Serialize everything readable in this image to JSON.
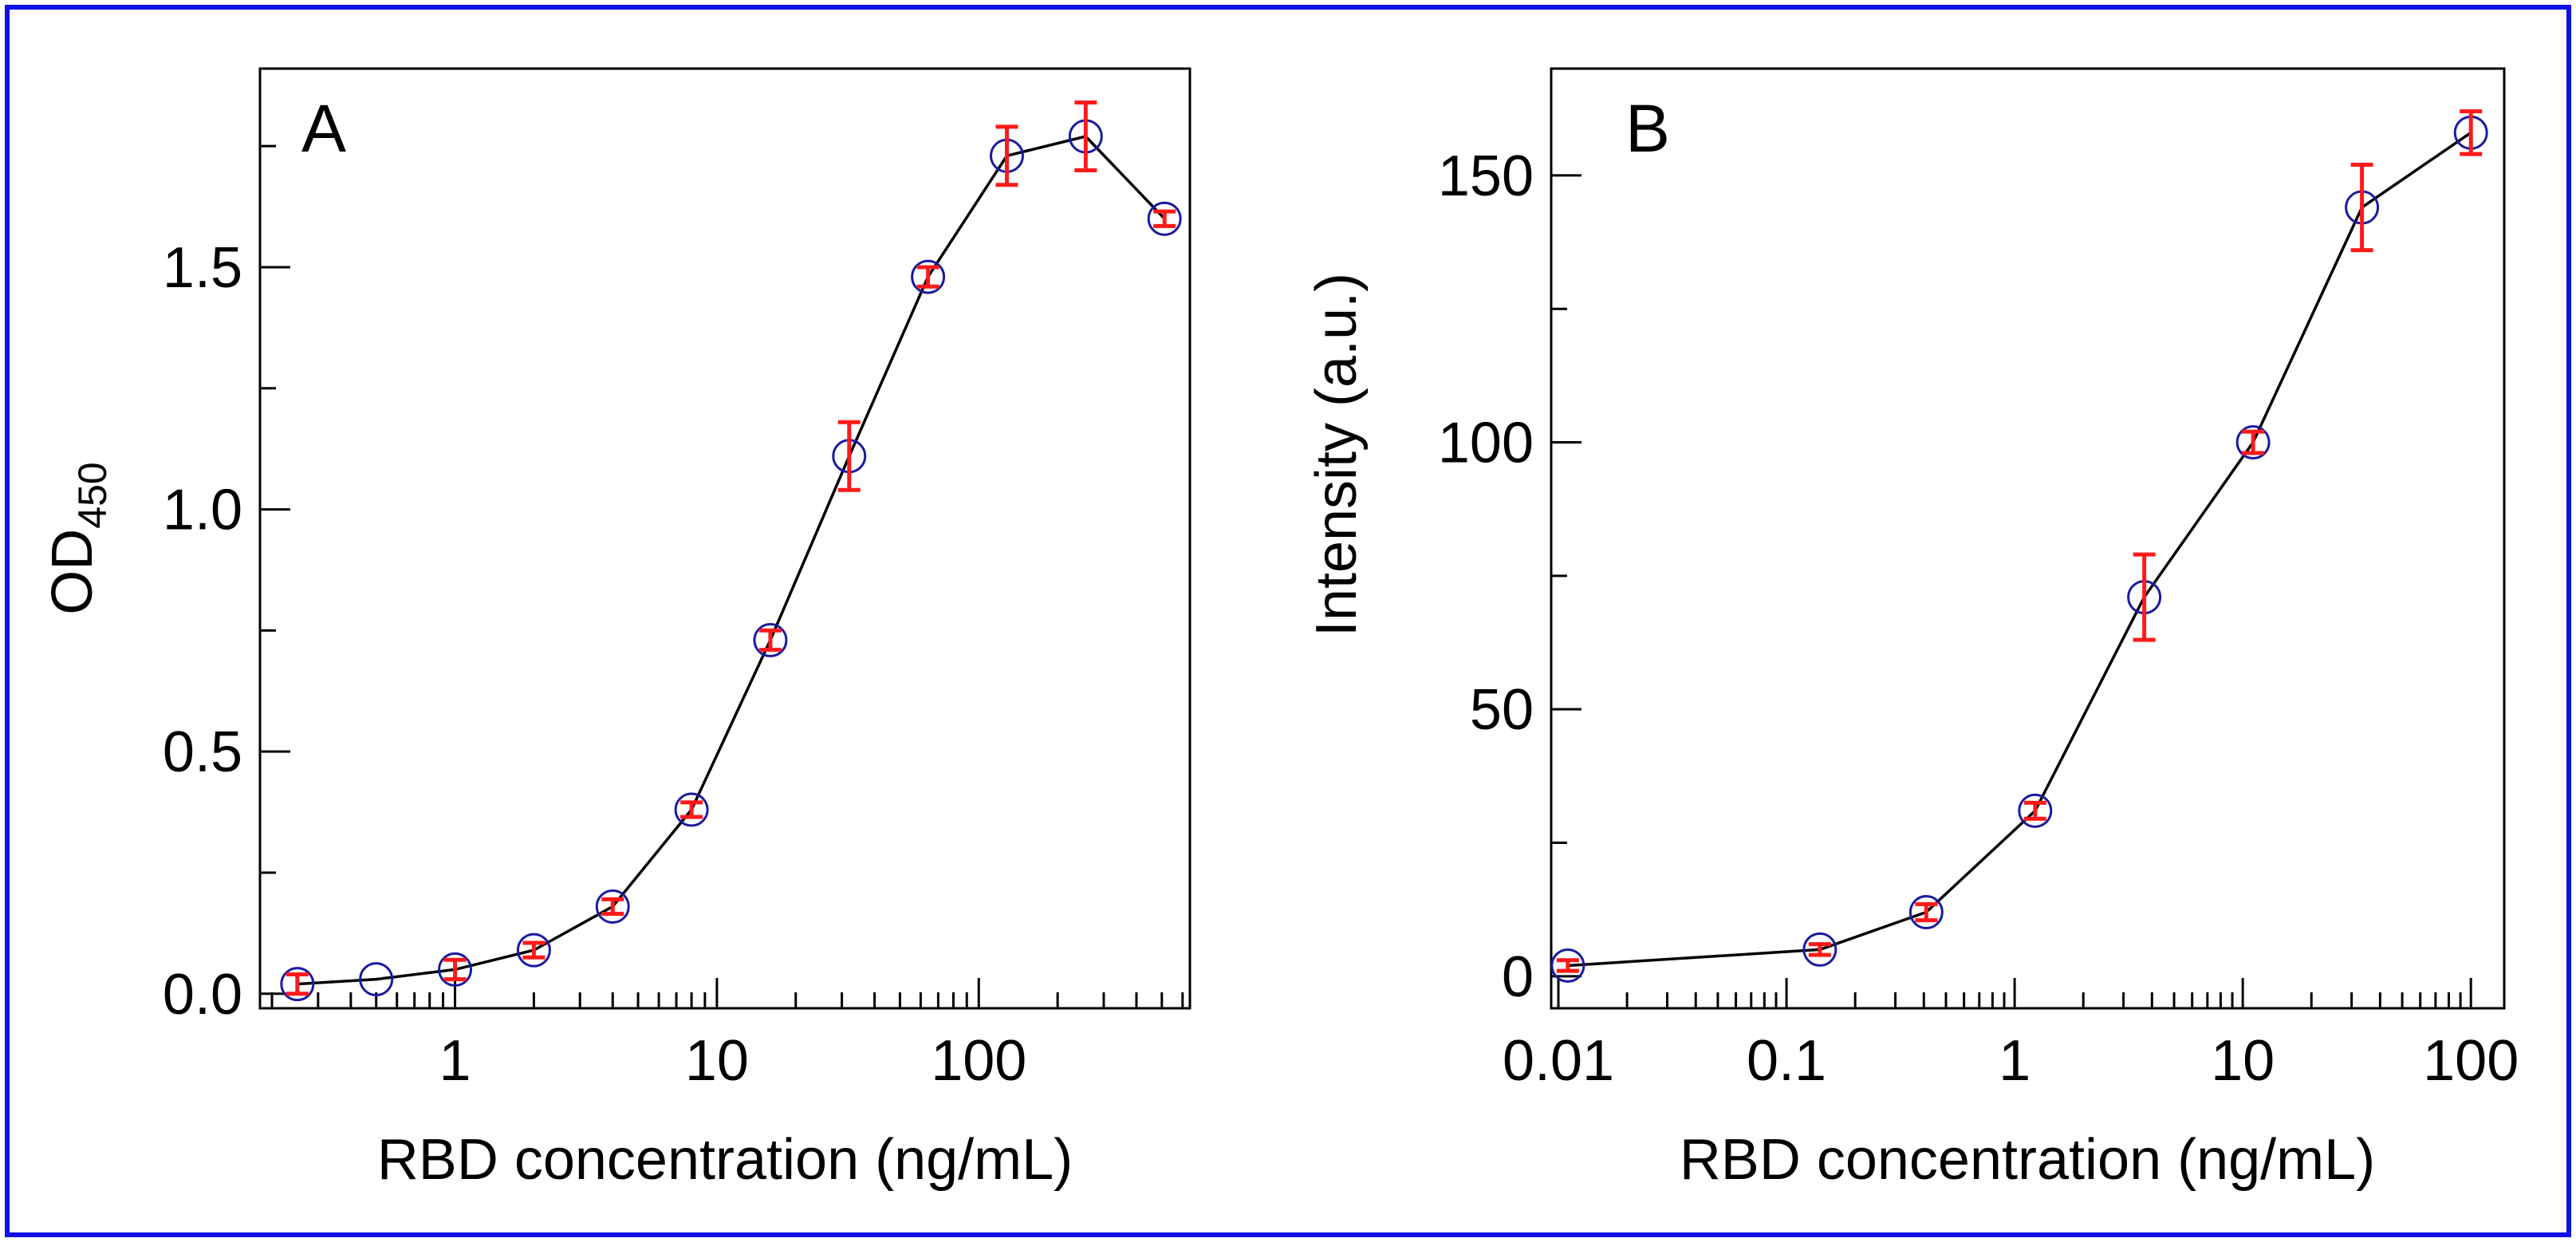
{
  "chart_data": [
    {
      "panel": "A",
      "type": "line",
      "xscale": "log",
      "xlim": [
        0.18,
        640
      ],
      "ylim": [
        -0.03,
        1.91
      ],
      "xticks": [
        {
          "v": 1,
          "label": "1"
        },
        {
          "v": 10,
          "label": "10"
        },
        {
          "v": 100,
          "label": "100"
        }
      ],
      "yticks": [
        {
          "v": 0,
          "label": "0.0"
        },
        {
          "v": 0.5,
          "label": "0.5"
        },
        {
          "v": 1.0,
          "label": "1.0"
        },
        {
          "v": 1.5,
          "label": "1.5"
        }
      ],
      "xlabel": "RBD concentration (ng/mL)",
      "ylabel_main": "OD",
      "ylabel_sub": "450",
      "x": [
        0.25,
        0.5,
        1,
        2,
        4,
        8,
        16,
        32,
        64,
        128,
        256,
        512
      ],
      "y": [
        0.02,
        0.03,
        0.05,
        0.09,
        0.18,
        0.38,
        0.73,
        1.11,
        1.48,
        1.73,
        1.77,
        1.6
      ],
      "err": [
        0.02,
        0.0,
        0.02,
        0.015,
        0.015,
        0.015,
        0.02,
        0.07,
        0.02,
        0.06,
        0.07,
        0.015
      ],
      "colors": {
        "line": "#000000",
        "marker": "#1a1aa0",
        "error": "#ff1a1a"
      }
    },
    {
      "panel": "B",
      "type": "line",
      "xscale": "log",
      "xlim": [
        0.0093,
        140
      ],
      "ylim": [
        -6,
        170
      ],
      "xticks": [
        {
          "v": 0.01,
          "label": "0.01"
        },
        {
          "v": 0.1,
          "label": "0.1"
        },
        {
          "v": 1,
          "label": "1"
        },
        {
          "v": 10,
          "label": "10"
        },
        {
          "v": 100,
          "label": "100"
        }
      ],
      "yticks": [
        {
          "v": 0,
          "label": "0"
        },
        {
          "v": 50,
          "label": "50"
        },
        {
          "v": 100,
          "label": "100"
        },
        {
          "v": 150,
          "label": "150"
        }
      ],
      "xlabel": "RBD concentration (ng/mL)",
      "ylabel_main": "Intensity (a.u.)",
      "x": [
        0.011,
        0.14,
        0.41,
        1.23,
        3.7,
        11.1,
        33.3,
        100
      ],
      "y": [
        2,
        5,
        12,
        31,
        71,
        100,
        144,
        158
      ],
      "err": [
        1,
        1,
        1.5,
        1.5,
        8,
        2,
        8,
        4
      ],
      "colors": {
        "line": "#000000",
        "marker": "#1a1aa0",
        "error": "#ff1a1a"
      }
    }
  ]
}
